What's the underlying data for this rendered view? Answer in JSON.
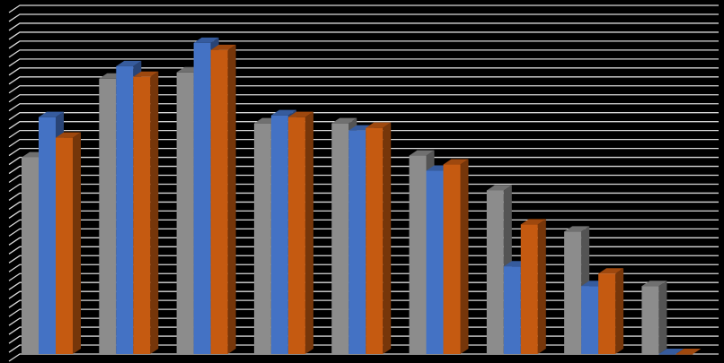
{
  "chart_data": {
    "type": "bar",
    "categories": [
      "",
      "",
      "",
      "",
      "",
      "",
      "",
      "",
      ""
    ],
    "series": [
      {
        "values": [
          220,
          308,
          315,
          258,
          258,
          222,
          183,
          137,
          76
        ]
      },
      {
        "values": [
          265,
          322,
          348,
          267,
          250,
          205,
          98,
          76,
          0
        ]
      },
      {
        "values": [
          242,
          310,
          340,
          265,
          253,
          212,
          145,
          90,
          0
        ]
      }
    ],
    "ylim": [
      0,
      390
    ],
    "grid": true,
    "legend": "none",
    "colors": {
      "background": "#000000",
      "grid": "#d9d9d9",
      "series": [
        "#8c8c8c",
        "#4472c4",
        "#c55a11"
      ]
    }
  }
}
